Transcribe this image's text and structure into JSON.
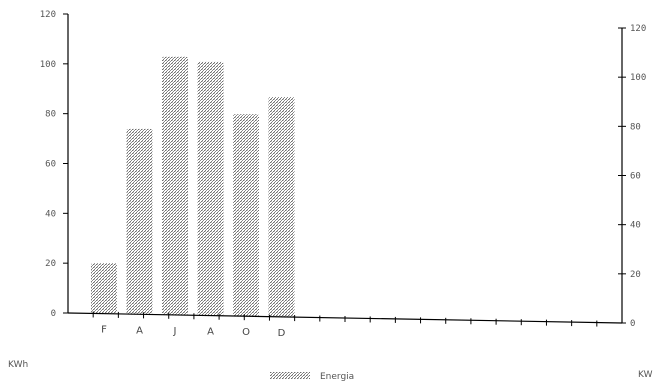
{
  "chart_data": {
    "type": "bar",
    "categories": [
      "F",
      "A",
      "J",
      "A",
      "O",
      "D"
    ],
    "values": [
      20,
      74,
      103,
      101,
      80,
      87
    ],
    "ylim": [
      0,
      120
    ],
    "yticks": [
      "0",
      "20",
      "40",
      "60",
      "80",
      "100",
      "120"
    ],
    "y_left_label": "KWh",
    "y_right_label": "KW",
    "series": [
      {
        "name": "Energia",
        "values": [
          20,
          74,
          103,
          101,
          80,
          87
        ]
      }
    ],
    "legend_position": "bottom-center",
    "grid": false,
    "x_slots": 22,
    "bar_color": "#a8a8a8"
  }
}
